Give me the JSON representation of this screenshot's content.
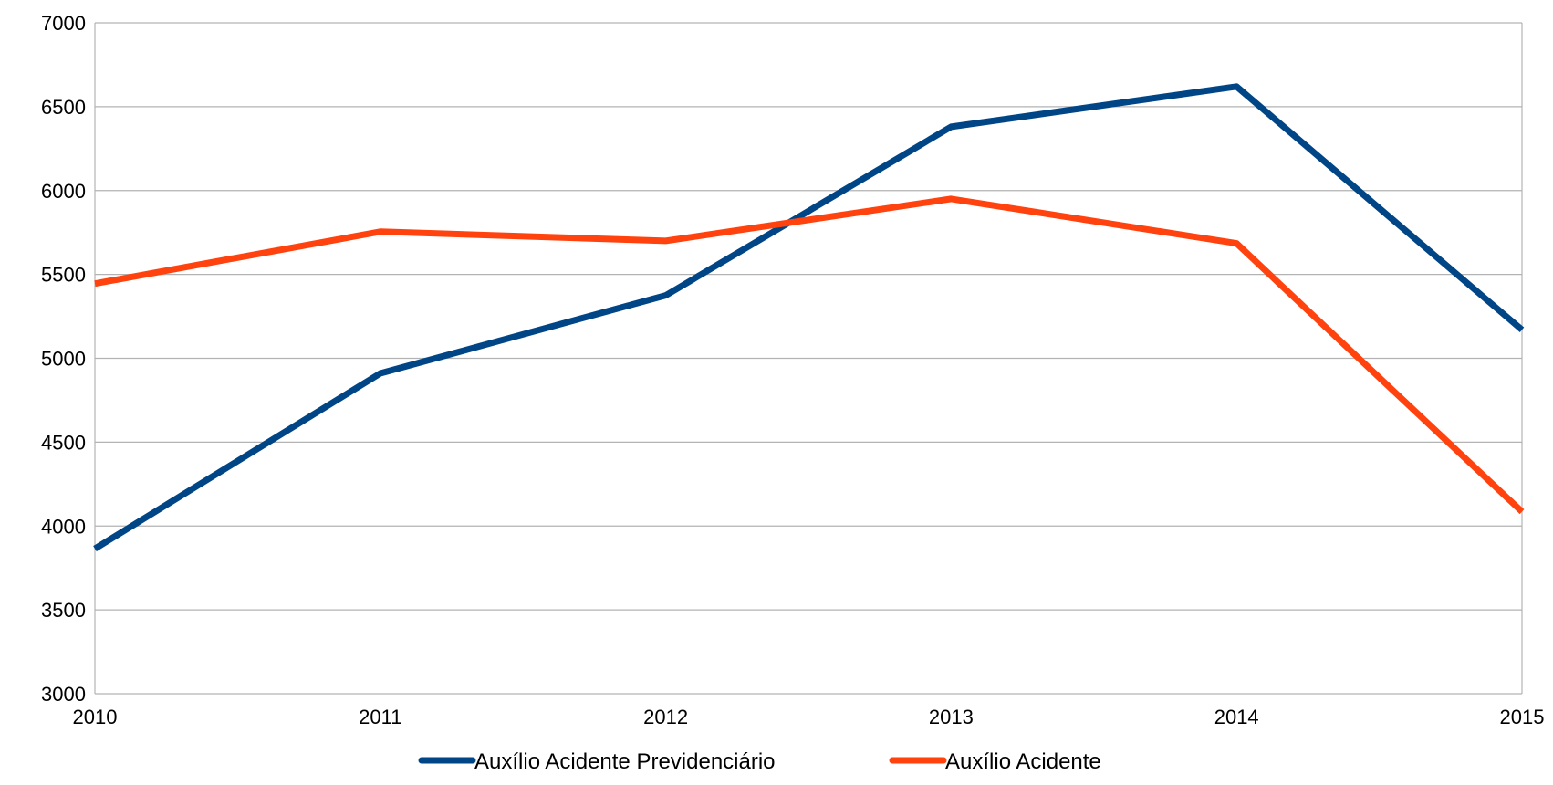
{
  "chart_data": {
    "type": "line",
    "x": [
      "2010",
      "2011",
      "2012",
      "2013",
      "2014",
      "2015"
    ],
    "series": [
      {
        "name": "Auxílio Acidente Previdenciário",
        "color": "#004586",
        "values": [
          3865,
          4910,
          5375,
          6380,
          6620,
          5170
        ]
      },
      {
        "name": "Auxílio Acidente",
        "color": "#ff420e",
        "values": [
          5445,
          5755,
          5700,
          5950,
          5685,
          4085
        ]
      }
    ],
    "ylim": [
      3000,
      7000
    ],
    "yticks": [
      "3000",
      "3500",
      "4000",
      "4500",
      "5000",
      "5500",
      "6000",
      "6500",
      "7000"
    ],
    "grid": true,
    "legend_position": "bottom-center",
    "gridline_color": "#b3b3b3",
    "axis_color": "#b3b3b3"
  }
}
